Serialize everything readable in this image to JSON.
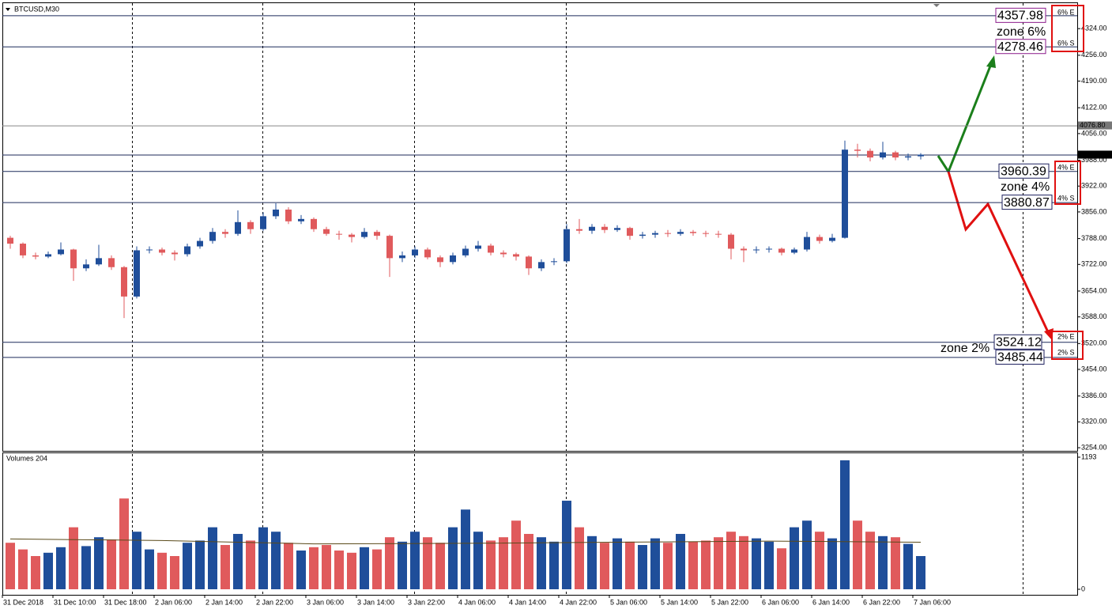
{
  "chart_data": {
    "type": "candlestick",
    "title": "BTCUSD,M30",
    "up_color": "#1f4e9a",
    "down_color": "#e05a5c",
    "ylim": [
      3246,
      4391
    ],
    "yticks": [
      {
        "value": 3254,
        "label": "3254.00"
      },
      {
        "value": 3320,
        "label": "3320.00"
      },
      {
        "value": 3386,
        "label": "3386.00"
      },
      {
        "value": 3454,
        "label": "3454.00"
      },
      {
        "value": 3520,
        "label": "3520.00"
      },
      {
        "value": 3588,
        "label": "3588.00"
      },
      {
        "value": 3654,
        "label": "3654.00"
      },
      {
        "value": 3722,
        "label": "3722.00"
      },
      {
        "value": 3788,
        "label": "3788.00"
      },
      {
        "value": 3856,
        "label": "3856.00"
      },
      {
        "value": 3922,
        "label": "3922.00"
      },
      {
        "value": 3988,
        "label": "3988.00"
      },
      {
        "value": 4056,
        "label": "4056.00"
      },
      {
        "value": 4122,
        "label": "4122.00"
      },
      {
        "value": 4190,
        "label": "4190.00"
      },
      {
        "value": 4256,
        "label": "4256.00"
      },
      {
        "value": 4324,
        "label": "4324.00"
      }
    ],
    "xlim": [
      0,
      85
    ],
    "xticks": [
      {
        "value": 0,
        "label": "31 Dec 2018"
      },
      {
        "value": 4,
        "label": "31 Dec 10:00"
      },
      {
        "value": 8,
        "label": "31 Dec 18:00"
      },
      {
        "value": 12,
        "label": "2 Jan 06:00"
      },
      {
        "value": 16,
        "label": "2 Jan 14:00"
      },
      {
        "value": 20,
        "label": "2 Jan 22:00"
      },
      {
        "value": 24,
        "label": "3 Jan 06:00"
      },
      {
        "value": 28,
        "label": "3 Jan 14:00"
      },
      {
        "value": 32,
        "label": "3 Jan 22:00"
      },
      {
        "value": 36,
        "label": "4 Jan 06:00"
      },
      {
        "value": 40,
        "label": "4 Jan 14:00"
      },
      {
        "value": 44,
        "label": "4 Jan 22:00"
      },
      {
        "value": 48,
        "label": "5 Jan 06:00"
      },
      {
        "value": 52,
        "label": "5 Jan 14:00"
      },
      {
        "value": 56,
        "label": "5 Jan 22:00"
      },
      {
        "value": 60,
        "label": "6 Jan 06:00"
      },
      {
        "value": 64,
        "label": "6 Jan 14:00"
      },
      {
        "value": 68,
        "label": "6 Jan 22:00"
      },
      {
        "value": 72,
        "label": "7 Jan 06:00"
      }
    ],
    "ohlc": [
      [
        3790,
        3795,
        3762,
        3775
      ],
      [
        3775,
        3778,
        3738,
        3745
      ],
      [
        3745,
        3752,
        3735,
        3742
      ],
      [
        3742,
        3755,
        3738,
        3748
      ],
      [
        3748,
        3778,
        3745,
        3760
      ],
      [
        3760,
        3762,
        3680,
        3712
      ],
      [
        3712,
        3735,
        3705,
        3722
      ],
      [
        3722,
        3772,
        3718,
        3738
      ],
      [
        3738,
        3745,
        3708,
        3715
      ],
      [
        3715,
        3718,
        3585,
        3640
      ],
      [
        3640,
        3768,
        3635,
        3758
      ],
      [
        3758,
        3768,
        3750,
        3760
      ],
      [
        3760,
        3765,
        3745,
        3752
      ],
      [
        3752,
        3758,
        3732,
        3748
      ],
      [
        3748,
        3775,
        3742,
        3768
      ],
      [
        3768,
        3790,
        3762,
        3782
      ],
      [
        3782,
        3815,
        3775,
        3805
      ],
      [
        3805,
        3812,
        3790,
        3800
      ],
      [
        3800,
        3860,
        3795,
        3830
      ],
      [
        3830,
        3835,
        3800,
        3812
      ],
      [
        3812,
        3855,
        3808,
        3845
      ],
      [
        3845,
        3878,
        3838,
        3862
      ],
      [
        3862,
        3868,
        3825,
        3832
      ],
      [
        3832,
        3848,
        3825,
        3838
      ],
      [
        3838,
        3842,
        3805,
        3812
      ],
      [
        3812,
        3818,
        3795,
        3800
      ],
      [
        3800,
        3808,
        3785,
        3798
      ],
      [
        3798,
        3802,
        3778,
        3792
      ],
      [
        3792,
        3815,
        3788,
        3805
      ],
      [
        3805,
        3810,
        3785,
        3795
      ],
      [
        3795,
        3798,
        3690,
        3738
      ],
      [
        3738,
        3755,
        3728,
        3745
      ],
      [
        3745,
        3768,
        3738,
        3760
      ],
      [
        3760,
        3765,
        3735,
        3740
      ],
      [
        3740,
        3745,
        3715,
        3728
      ],
      [
        3728,
        3752,
        3722,
        3745
      ],
      [
        3745,
        3770,
        3740,
        3762
      ],
      [
        3762,
        3782,
        3755,
        3770
      ],
      [
        3770,
        3775,
        3745,
        3752
      ],
      [
        3752,
        3758,
        3740,
        3748
      ],
      [
        3748,
        3752,
        3732,
        3742
      ],
      [
        3742,
        3745,
        3695,
        3712
      ],
      [
        3712,
        3735,
        3705,
        3728
      ],
      [
        3728,
        3738,
        3720,
        3730
      ],
      [
        3730,
        3825,
        3725,
        3812
      ],
      [
        3812,
        3838,
        3800,
        3808
      ],
      [
        3808,
        3825,
        3800,
        3818
      ],
      [
        3818,
        3825,
        3802,
        3810
      ],
      [
        3810,
        3822,
        3805,
        3815
      ],
      [
        3815,
        3818,
        3785,
        3795
      ],
      [
        3795,
        3805,
        3788,
        3798
      ],
      [
        3798,
        3808,
        3790,
        3802
      ],
      [
        3802,
        3810,
        3792,
        3800
      ],
      [
        3800,
        3812,
        3795,
        3805
      ],
      [
        3805,
        3810,
        3795,
        3802
      ],
      [
        3802,
        3808,
        3792,
        3800
      ],
      [
        3800,
        3808,
        3790,
        3798
      ],
      [
        3798,
        3802,
        3735,
        3762
      ],
      [
        3762,
        3768,
        3728,
        3758
      ],
      [
        3758,
        3768,
        3750,
        3760
      ],
      [
        3760,
        3768,
        3752,
        3762
      ],
      [
        3762,
        3765,
        3745,
        3752
      ],
      [
        3752,
        3765,
        3748,
        3760
      ],
      [
        3760,
        3805,
        3755,
        3792
      ],
      [
        3792,
        3798,
        3775,
        3782
      ],
      [
        3782,
        3800,
        3778,
        3790
      ],
      [
        3790,
        4038,
        3788,
        4015
      ],
      [
        4015,
        4030,
        3995,
        4012
      ],
      [
        4012,
        4018,
        3985,
        3995
      ],
      [
        3995,
        4035,
        3990,
        4008
      ],
      [
        4008,
        4012,
        3988,
        3995
      ],
      [
        3995,
        4005,
        3988,
        3998
      ],
      [
        3998,
        4006,
        3990,
        4002.3
      ]
    ],
    "volume_title": "Volumes 204",
    "vlim": [
      0,
      1236
    ],
    "vticks": [
      0,
      1193
    ],
    "volumes": [
      420,
      360,
      300,
      330,
      380,
      560,
      390,
      470,
      450,
      820,
      520,
      360,
      330,
      300,
      420,
      440,
      560,
      400,
      500,
      440,
      560,
      520,
      420,
      350,
      380,
      400,
      350,
      330,
      380,
      360,
      470,
      430,
      520,
      470,
      420,
      560,
      720,
      520,
      440,
      470,
      620,
      500,
      470,
      430,
      800,
      560,
      480,
      420,
      460,
      430,
      400,
      460,
      420,
      500,
      430,
      440,
      470,
      520,
      480,
      460,
      430,
      370,
      560,
      620,
      520,
      460,
      1165,
      620,
      520,
      480,
      470,
      410,
      300
    ],
    "volume_ma": {
      "x": [
        0,
        12,
        24,
        36,
        48,
        60,
        72
      ],
      "values": [
        455,
        440,
        410,
        415,
        425,
        435,
        425
      ],
      "color": "#5a4a1a"
    },
    "levels": [
      {
        "value": 4357.98,
        "color": "#8b1a8b"
      },
      {
        "value": 4278.46,
        "color": "#8b1a8b"
      },
      {
        "value": 3960.39,
        "color": "#1c1f5e"
      },
      {
        "value": 3880.87,
        "color": "#1c1f5e"
      },
      {
        "value": 3524.12,
        "color": "#1c1f5e"
      },
      {
        "value": 3485.44,
        "color": "#1c1f5e"
      }
    ],
    "zones": [
      {
        "name": "zone 6%",
        "color": "#8b1a8b",
        "tags": [
          "6% E",
          "6% S"
        ]
      },
      {
        "name": "zone 4%",
        "color": "#1c1f5e",
        "tags": [
          "4% E",
          "4% S"
        ]
      },
      {
        "name": "zone 2%",
        "color": "#1c1f5e",
        "tags": [
          "2% E",
          "2% S"
        ]
      }
    ],
    "price_tags": [
      {
        "value": 4076.8,
        "label": "4076.80",
        "color": "#777777"
      },
      {
        "value": 4002.3,
        "label": "4002.30",
        "color": "#000000"
      }
    ]
  }
}
